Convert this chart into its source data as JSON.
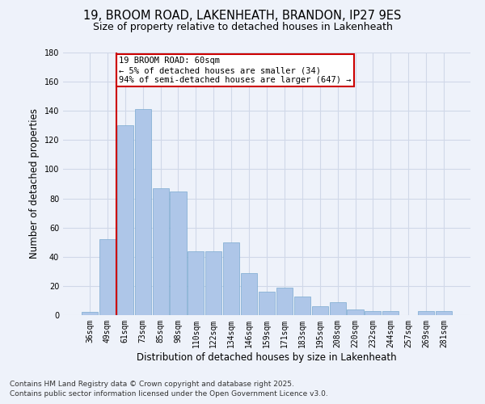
{
  "title_line1": "19, BROOM ROAD, LAKENHEATH, BRANDON, IP27 9ES",
  "title_line2": "Size of property relative to detached houses in Lakenheath",
  "xlabel": "Distribution of detached houses by size in Lakenheath",
  "ylabel": "Number of detached properties",
  "categories": [
    "36sqm",
    "49sqm",
    "61sqm",
    "73sqm",
    "85sqm",
    "98sqm",
    "110sqm",
    "122sqm",
    "134sqm",
    "146sqm",
    "159sqm",
    "171sqm",
    "183sqm",
    "195sqm",
    "208sqm",
    "220sqm",
    "232sqm",
    "244sqm",
    "257sqm",
    "269sqm",
    "281sqm"
  ],
  "values": [
    2,
    52,
    130,
    141,
    87,
    85,
    44,
    44,
    50,
    29,
    16,
    19,
    13,
    6,
    9,
    4,
    3,
    3,
    0,
    3,
    3
  ],
  "bar_color": "#aec6e8",
  "bar_edge_color": "#7aaad0",
  "property_bar_index": 2,
  "annotation_text": "19 BROOM ROAD: 60sqm\n← 5% of detached houses are smaller (34)\n94% of semi-detached houses are larger (647) →",
  "annotation_box_color": "#ffffff",
  "annotation_box_edge_color": "#cc0000",
  "vline_color": "#cc0000",
  "grid_color": "#d0d8e8",
  "background_color": "#eef2fa",
  "ylim": [
    0,
    180
  ],
  "yticks": [
    0,
    20,
    40,
    60,
    80,
    100,
    120,
    140,
    160,
    180
  ],
  "footer_line1": "Contains HM Land Registry data © Crown copyright and database right 2025.",
  "footer_line2": "Contains public sector information licensed under the Open Government Licence v3.0.",
  "title_fontsize": 10.5,
  "subtitle_fontsize": 9,
  "axis_label_fontsize": 8.5,
  "tick_fontsize": 7,
  "annotation_fontsize": 7.5,
  "footer_fontsize": 6.5
}
